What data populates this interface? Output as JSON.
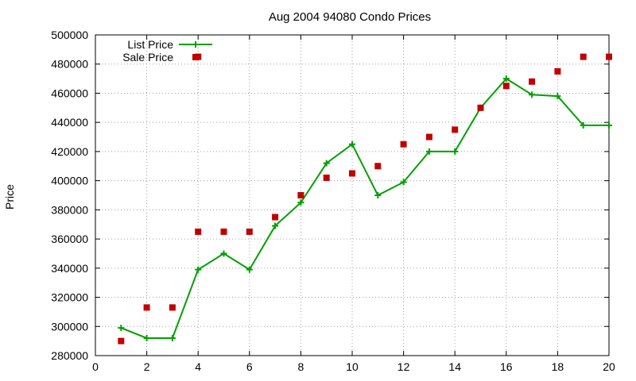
{
  "chart_data": {
    "type": "line",
    "title": "Aug 2004 94080 Condo Prices",
    "xlabel": "",
    "ylabel": "Price",
    "xlim": [
      0,
      20
    ],
    "ylim": [
      280000,
      500000
    ],
    "xticks": [
      0,
      2,
      4,
      6,
      8,
      10,
      12,
      14,
      16,
      18,
      20
    ],
    "yticks": [
      280000,
      300000,
      320000,
      340000,
      360000,
      380000,
      400000,
      420000,
      440000,
      460000,
      480000,
      500000
    ],
    "grid": true,
    "legend_position": "top-left",
    "series": [
      {
        "name": "List Price",
        "style": "line+cross",
        "color": "#00a000",
        "x": [
          1,
          2,
          3,
          4,
          5,
          6,
          7,
          8,
          9,
          10,
          11,
          12,
          13,
          14,
          15,
          16,
          17,
          18,
          19,
          20
        ],
        "y": [
          299000,
          292000,
          292000,
          339000,
          350000,
          339000,
          369000,
          385000,
          412000,
          425000,
          390000,
          399000,
          420000,
          420000,
          450000,
          470000,
          459000,
          458000,
          438000,
          438000
        ]
      },
      {
        "name": "Sale Price",
        "style": "square-markers",
        "color": "#c00000",
        "x": [
          1,
          2,
          3,
          4,
          4,
          5,
          6,
          7,
          8,
          9,
          10,
          11,
          12,
          13,
          14,
          15,
          16,
          17,
          18,
          19,
          20
        ],
        "y": [
          290000,
          313000,
          313000,
          485000,
          365000,
          365000,
          365000,
          375000,
          390000,
          402000,
          405000,
          410000,
          425000,
          430000,
          435000,
          450000,
          465000,
          468000,
          475000,
          485000,
          485000
        ]
      }
    ]
  }
}
